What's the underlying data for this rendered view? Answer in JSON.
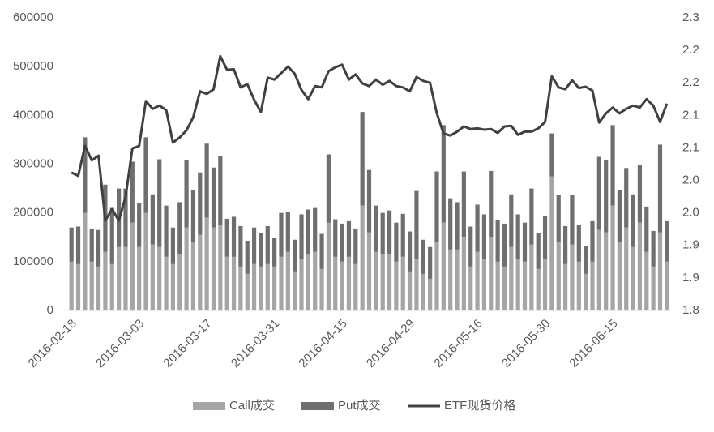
{
  "chart_data": {
    "type": "bar",
    "stacked": true,
    "categories": [
      "2016-02-18",
      null,
      null,
      null,
      null,
      null,
      null,
      null,
      null,
      null,
      "2016-03-03",
      null,
      null,
      null,
      null,
      null,
      null,
      null,
      null,
      null,
      "2016-03-17",
      null,
      null,
      null,
      null,
      null,
      null,
      null,
      null,
      null,
      "2016-03-31",
      null,
      null,
      null,
      null,
      null,
      null,
      null,
      null,
      null,
      "2016-04-15",
      null,
      null,
      null,
      null,
      null,
      null,
      null,
      null,
      null,
      "2016-04-29",
      null,
      null,
      null,
      null,
      null,
      null,
      null,
      null,
      null,
      "2016-05-16",
      null,
      null,
      null,
      null,
      null,
      null,
      null,
      null,
      null,
      "2016-05-30",
      null,
      null,
      null,
      null,
      null,
      null,
      null,
      null,
      null,
      "2016-06-15",
      null,
      null,
      null,
      null,
      null,
      null,
      null,
      null
    ],
    "series": [
      {
        "name": "Call成交",
        "color": "#a5a5a5",
        "values": [
          100000,
          95000,
          200000,
          100000,
          90000,
          120000,
          95000,
          130000,
          130000,
          180000,
          130000,
          200000,
          135000,
          130000,
          110000,
          95000,
          115000,
          170000,
          140000,
          155000,
          190000,
          170000,
          175000,
          110000,
          110000,
          90000,
          75000,
          95000,
          90000,
          95000,
          90000,
          110000,
          120000,
          80000,
          105000,
          115000,
          120000,
          85000,
          180000,
          110000,
          100000,
          110000,
          95000,
          215000,
          160000,
          120000,
          115000,
          115000,
          100000,
          110000,
          80000,
          105000,
          75000,
          65000,
          140000,
          180000,
          125000,
          125000,
          150000,
          90000,
          120000,
          105000,
          150000,
          100000,
          90000,
          130000,
          105000,
          100000,
          135000,
          85000,
          105000,
          275000,
          140000,
          95000,
          135000,
          100000,
          75000,
          100000,
          165000,
          160000,
          215000,
          140000,
          170000,
          130000,
          180000,
          120000,
          90000,
          160000,
          100000
        ]
      },
      {
        "name": "Put成交",
        "color": "#6f6f6f",
        "values": [
          70000,
          77000,
          155000,
          68000,
          75000,
          138000,
          115000,
          120000,
          120000,
          125000,
          90000,
          155000,
          103000,
          180000,
          105000,
          75000,
          107000,
          138000,
          107000,
          128000,
          152000,
          123000,
          142000,
          78000,
          82000,
          83000,
          68000,
          75000,
          68000,
          78000,
          58000,
          90000,
          82000,
          65000,
          92000,
          92000,
          90000,
          72000,
          140000,
          77000,
          78000,
          73000,
          73000,
          192000,
          128000,
          95000,
          85000,
          90000,
          80000,
          88000,
          82000,
          140000,
          70000,
          65000,
          145000,
          200000,
          105000,
          97000,
          135000,
          82000,
          97000,
          92000,
          136000,
          85000,
          88000,
          108000,
          92000,
          80000,
          115000,
          73000,
          88000,
          88000,
          96000,
          78000,
          101000,
          75000,
          58000,
          83000,
          150000,
          148000,
          165000,
          107000,
          122000,
          108000,
          119000,
          93000,
          73000,
          180000,
          83000
        ]
      },
      {
        "name": "ETF现货价格",
        "color": "#404040",
        "type": "line",
        "axis": "y2",
        "values": [
          2.012,
          2.007,
          2.053,
          2.031,
          2.038,
          1.938,
          1.956,
          1.938,
          1.975,
          2.049,
          2.053,
          2.122,
          2.11,
          2.115,
          2.108,
          2.058,
          2.066,
          2.077,
          2.097,
          2.137,
          2.133,
          2.14,
          2.191,
          2.17,
          2.171,
          2.143,
          2.148,
          2.124,
          2.105,
          2.158,
          2.155,
          2.165,
          2.175,
          2.164,
          2.139,
          2.125,
          2.145,
          2.143,
          2.168,
          2.174,
          2.178,
          2.155,
          2.163,
          2.149,
          2.145,
          2.155,
          2.147,
          2.153,
          2.145,
          2.143,
          2.137,
          2.159,
          2.153,
          2.15,
          2.103,
          2.072,
          2.069,
          2.075,
          2.083,
          2.079,
          2.08,
          2.078,
          2.079,
          2.073,
          2.083,
          2.084,
          2.07,
          2.075,
          2.075,
          2.08,
          2.09,
          2.16,
          2.143,
          2.14,
          2.154,
          2.142,
          2.144,
          2.138,
          2.089,
          2.103,
          2.112,
          2.103,
          2.11,
          2.115,
          2.112,
          2.125,
          2.115,
          2.09,
          2.118
        ]
      }
    ],
    "ylim": [
      0,
      600000
    ],
    "yticks": [
      0,
      100000,
      200000,
      300000,
      400000,
      500000,
      600000
    ],
    "y2lim": [
      1.8,
      2.25
    ],
    "y2ticks": [
      1.8,
      {
        "value": 1.85,
        "label": "1.9"
      },
      1.9,
      {
        "value": 1.95,
        "label": "2.0"
      },
      {
        "value": 2.0,
        "label": "2.0"
      },
      {
        "value": 2.05,
        "label": "2.1"
      },
      2.1,
      {
        "value": 2.15,
        "label": "2.2"
      },
      2.2,
      {
        "value": 2.25,
        "label": "2.3"
      }
    ],
    "legend": "bottom"
  }
}
